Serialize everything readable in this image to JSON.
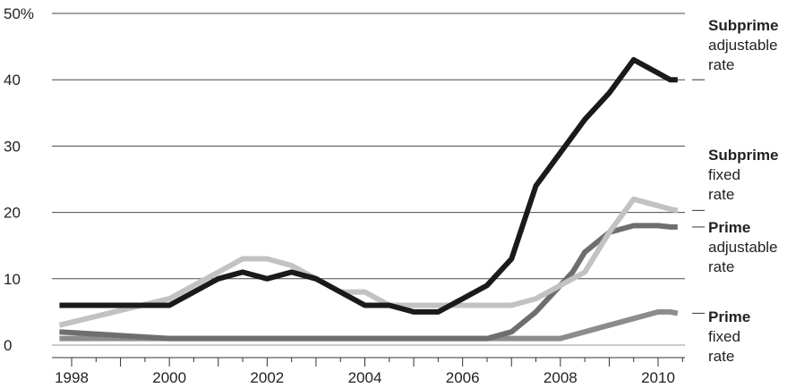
{
  "chart_data": {
    "type": "line",
    "title": "",
    "xlabel": "",
    "ylabel": "",
    "y_unit_label": "50%",
    "xlim": [
      1997.6,
      2010.5
    ],
    "ylim": [
      0,
      50
    ],
    "grid": true,
    "x_ticks": [
      1998,
      2000,
      2002,
      2004,
      2006,
      2008,
      2010
    ],
    "y_ticks": [
      0,
      10,
      20,
      30,
      40,
      50
    ],
    "y_tick_labels": [
      "0",
      "10",
      "20",
      "30",
      "40",
      "50%"
    ],
    "x_tick_labels": [
      "1998",
      "2000",
      "2002",
      "2004",
      "2006",
      "2008",
      "2010"
    ],
    "series": [
      {
        "name": "Subprime adjustable rate",
        "label_parts": [
          "Subprime",
          "adjustable",
          "rate"
        ],
        "color": "#1a1a1a",
        "x": [
          1997.75,
          2000.0,
          2001.0,
          2001.5,
          2002.0,
          2002.5,
          2003.0,
          2003.5,
          2004.0,
          2004.5,
          2005.0,
          2005.5,
          2006.0,
          2006.5,
          2007.0,
          2007.5,
          2008.0,
          2008.5,
          2009.0,
          2009.5,
          2010.0,
          2010.25,
          2010.4
        ],
        "y": [
          6,
          6,
          10,
          11,
          10,
          11,
          10,
          8,
          6,
          6,
          5,
          5,
          7,
          9,
          13,
          24,
          29,
          34,
          38,
          43,
          41,
          40,
          40
        ]
      },
      {
        "name": "Subprime fixed rate",
        "label_parts": [
          "Subprime",
          "fixed",
          "rate"
        ],
        "color": "#c2c2c2",
        "x": [
          1997.75,
          2000.0,
          2001.0,
          2001.5,
          2002.0,
          2002.5,
          2003.0,
          2003.5,
          2004.0,
          2004.5,
          2005.0,
          2005.5,
          2006.0,
          2006.5,
          2007.0,
          2007.5,
          2008.0,
          2008.5,
          2009.0,
          2009.5,
          2010.0,
          2010.25,
          2010.4
        ],
        "y": [
          3,
          7,
          11,
          13,
          13,
          12,
          10,
          8,
          8,
          6,
          6,
          6,
          6,
          6,
          6,
          7,
          9,
          11,
          17,
          22,
          21,
          20.5,
          20.3
        ]
      },
      {
        "name": "Prime adjustable rate",
        "label_parts": [
          "Prime",
          "adjustable",
          "rate"
        ],
        "color": "#6e6e6e",
        "x": [
          1997.75,
          2000.0,
          2001.0,
          2002.0,
          2003.0,
          2004.0,
          2005.0,
          2006.0,
          2006.5,
          2007.0,
          2007.5,
          2008.0,
          2008.25,
          2008.5,
          2009.0,
          2009.5,
          2010.0,
          2010.25,
          2010.4
        ],
        "y": [
          2,
          1,
          1,
          1,
          1,
          1,
          1,
          1,
          1,
          2,
          5,
          9,
          11,
          14,
          17,
          18,
          18,
          17.8,
          17.8
        ]
      },
      {
        "name": "Prime fixed rate",
        "label_parts": [
          "Prime",
          "fixed",
          "rate"
        ],
        "color": "#8c8c8c",
        "x": [
          1997.75,
          2000.0,
          2001.0,
          2002.0,
          2003.0,
          2004.0,
          2005.0,
          2006.0,
          2007.0,
          2007.5,
          2008.0,
          2008.5,
          2009.0,
          2009.5,
          2010.0,
          2010.25,
          2010.4
        ],
        "y": [
          1,
          1,
          1,
          1,
          1,
          1,
          1,
          1,
          1,
          1,
          1,
          2,
          3,
          4,
          5,
          5,
          4.8
        ]
      }
    ]
  }
}
